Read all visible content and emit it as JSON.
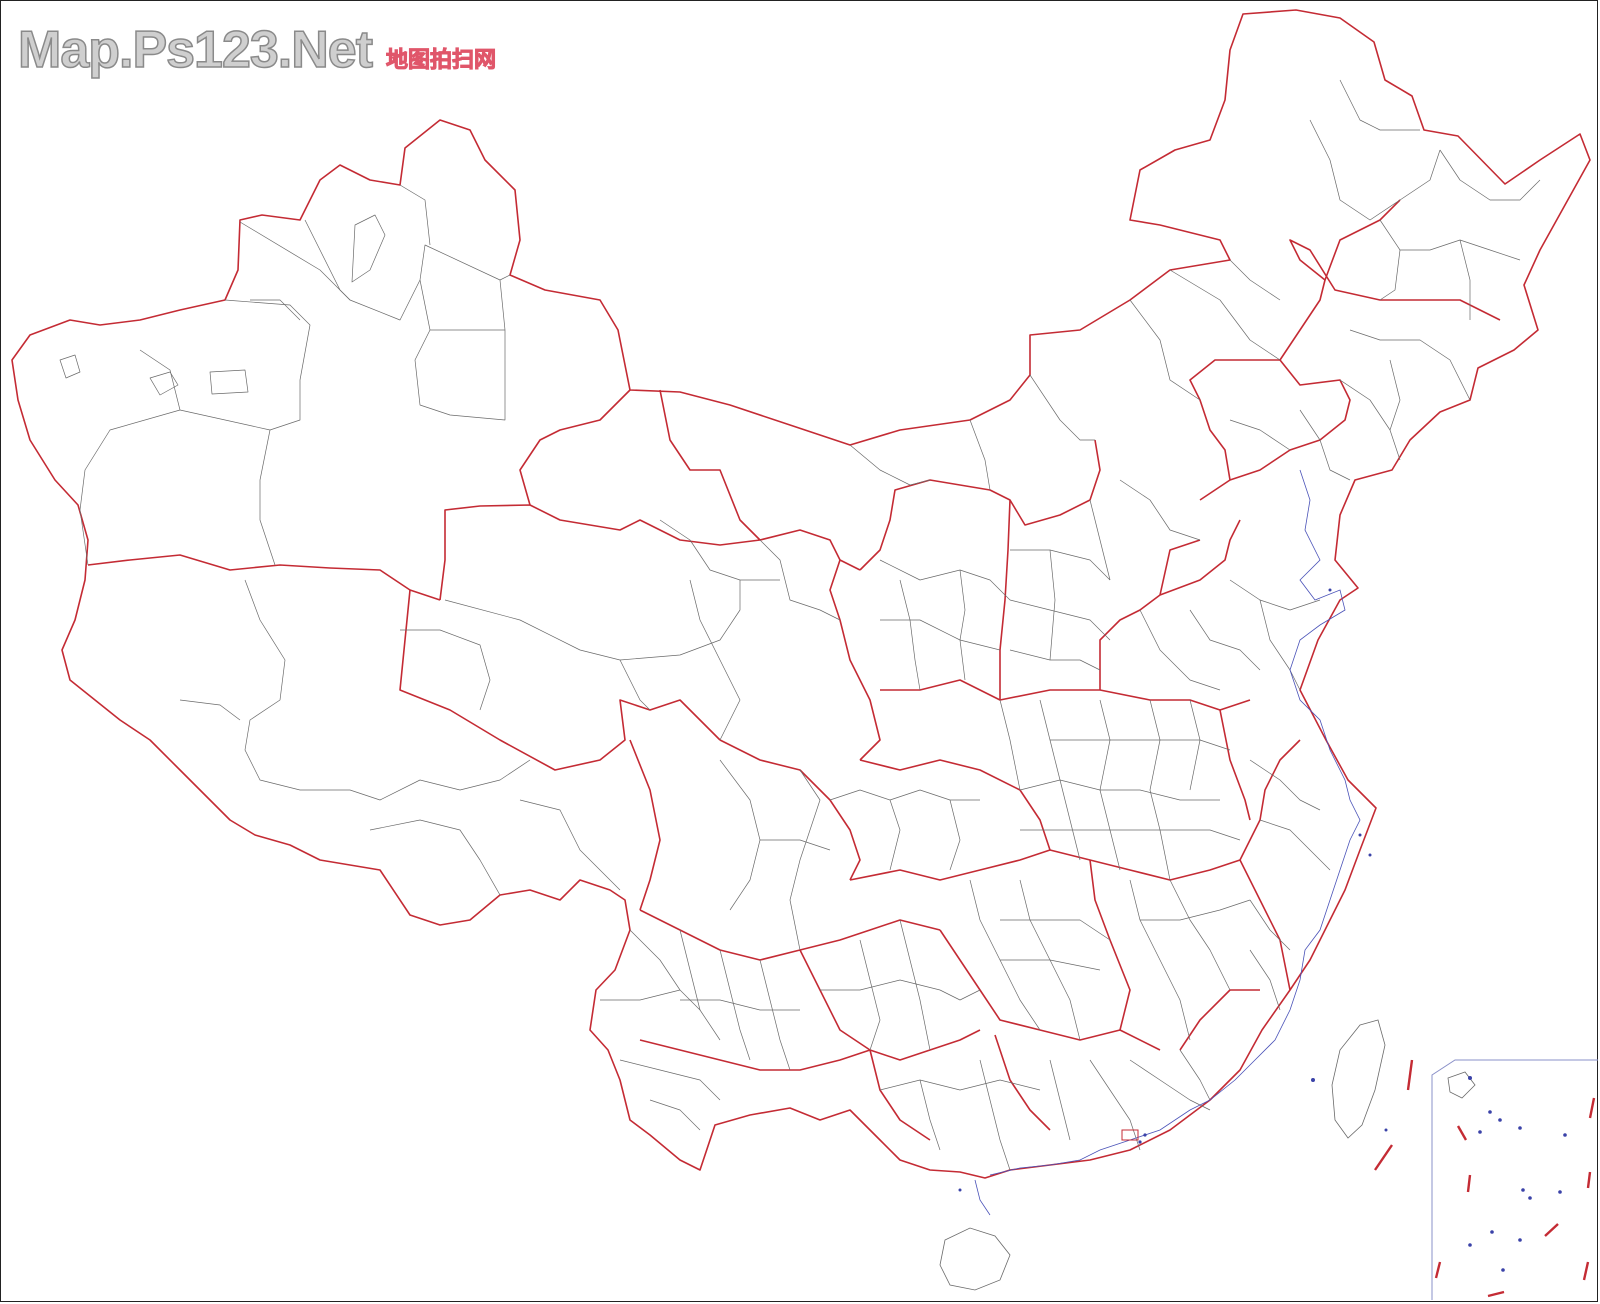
{
  "watermark": {
    "site": "Map.Ps123.Net",
    "tagline": "地图拍扫网"
  },
  "map": {
    "subject": "China administrative boundary outline map",
    "colors": {
      "province_border": "#c42b34",
      "prefecture_border": "#6a6a6a",
      "coastline": "#4a52b8",
      "background": "#ffffff"
    }
  }
}
